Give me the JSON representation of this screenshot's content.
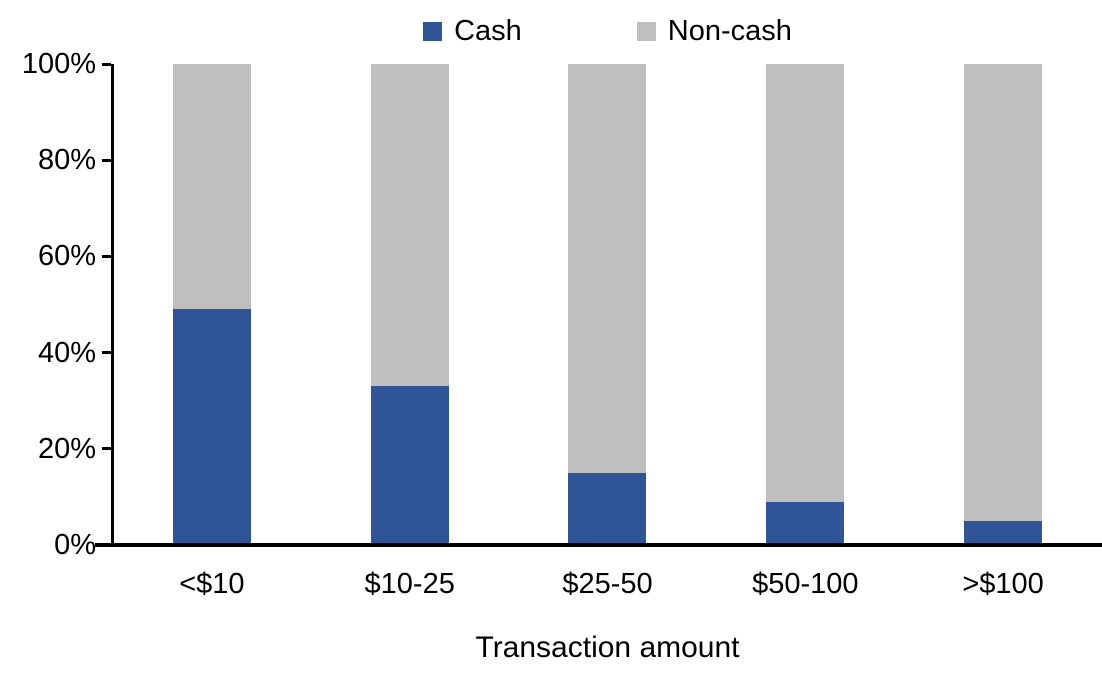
{
  "chart_data": {
    "type": "bar",
    "stacked": true,
    "units": "percent",
    "title": "",
    "xlabel": "Transaction amount",
    "ylabel": "",
    "categories": [
      "<$10",
      "$10-25",
      "$25-50",
      "$50-100",
      ">$100"
    ],
    "series": [
      {
        "name": "Cash",
        "color": "#2F5597",
        "values": [
          49,
          33,
          15,
          9,
          5
        ]
      },
      {
        "name": "Non-cash",
        "color": "#BFBFBF",
        "values": [
          51,
          67,
          85,
          91,
          95
        ]
      }
    ],
    "y_ticks": [
      "0%",
      "20%",
      "40%",
      "60%",
      "80%",
      "100%"
    ],
    "y_tick_values": [
      0,
      20,
      40,
      60,
      80,
      100
    ],
    "ylim": [
      0,
      100
    ],
    "legend_position": "top",
    "grid": false
  },
  "colors": {
    "axis": "#000000",
    "text": "#000000",
    "background": "#FFFFFF"
  }
}
